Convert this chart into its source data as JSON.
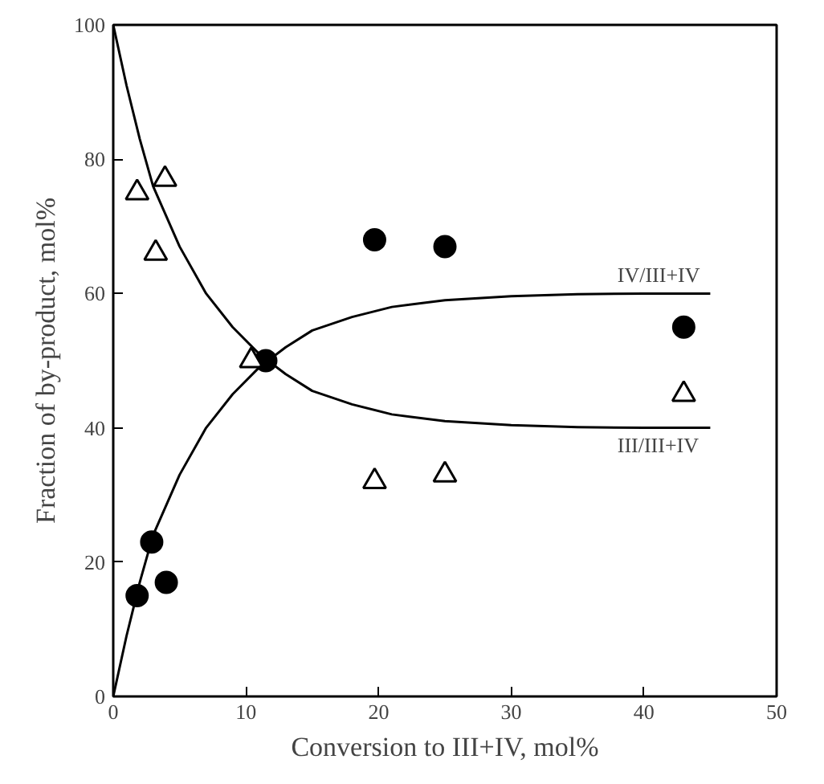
{
  "chart_data": {
    "type": "scatter",
    "xlabel": "Conversion to III+IV, mol%",
    "ylabel": "Fraction of by-product, mol%",
    "xlim": [
      0,
      50
    ],
    "ylim": [
      0,
      100
    ],
    "xticks": [
      0,
      10,
      20,
      30,
      40,
      50
    ],
    "yticks": [
      0,
      20,
      40,
      60,
      80,
      100
    ],
    "grid": false,
    "series": [
      {
        "marker": "circle",
        "color": "#000000",
        "x": [
          1.8,
          2.9,
          4.0,
          11.5,
          19.7,
          25.0,
          43.0
        ],
        "values": [
          15,
          23,
          17,
          50,
          68,
          67,
          55
        ]
      },
      {
        "marker": "triangle",
        "color": "#000000",
        "x": [
          1.8,
          3.9,
          3.2,
          10.4,
          19.7,
          25.0,
          43.0
        ],
        "values": [
          75,
          77,
          66,
          50,
          32,
          33,
          45
        ]
      },
      {
        "type": "line",
        "marker": "none",
        "color": "#000000",
        "x": [
          0,
          1,
          2,
          3,
          5,
          7,
          9,
          11,
          13,
          15,
          18,
          21,
          25,
          30,
          35,
          40,
          45
        ],
        "values": [
          0,
          9,
          17,
          24,
          33,
          40,
          45,
          49,
          52,
          54.5,
          56.5,
          58,
          59,
          59.6,
          59.9,
          60,
          60
        ]
      },
      {
        "type": "line",
        "marker": "none",
        "color": "#000000",
        "x": [
          0,
          1,
          2,
          3,
          5,
          7,
          9,
          11,
          13,
          15,
          18,
          21,
          25,
          30,
          35,
          40,
          45
        ],
        "values": [
          100,
          91,
          83,
          76,
          67,
          60,
          55,
          51,
          48,
          45.5,
          43.5,
          42,
          41,
          40.4,
          40.1,
          40,
          40
        ]
      }
    ],
    "annotations": [
      {
        "text": "IV/III+IV",
        "x": 38,
        "y": 60
      },
      {
        "text": "III/III+IV",
        "x": 38,
        "y": 40
      }
    ]
  }
}
